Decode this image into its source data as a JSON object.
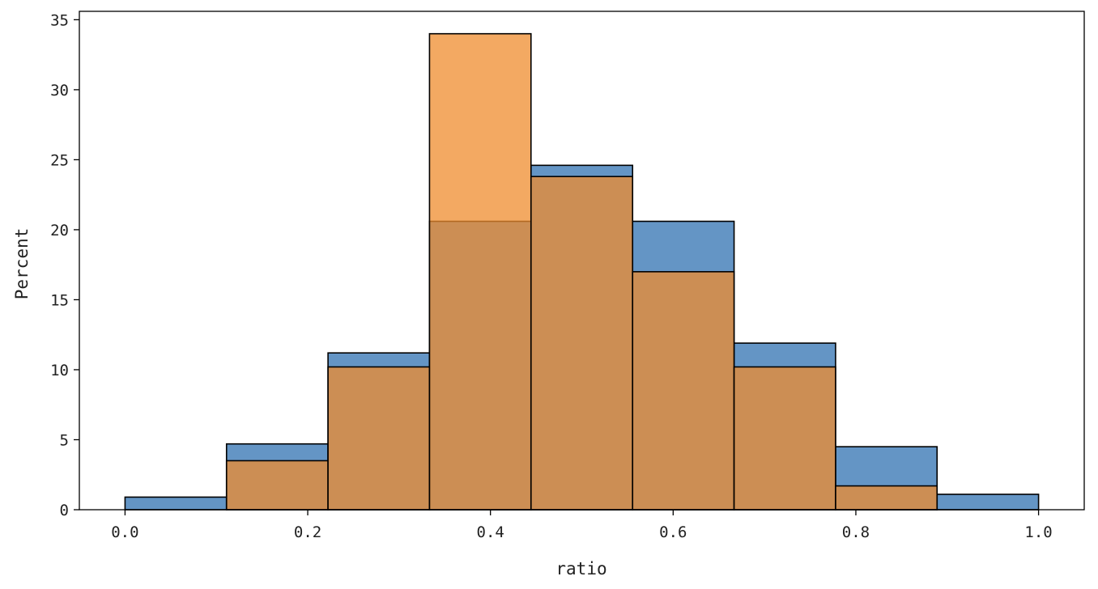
{
  "chart_data": {
    "type": "histogram",
    "xlabel": "ratio",
    "ylabel": "Percent",
    "xlim": [
      -0.05,
      1.05
    ],
    "ylim": [
      0,
      35.6
    ],
    "x_ticks": [
      0.0,
      0.2,
      0.4,
      0.6,
      0.8,
      1.0
    ],
    "x_tick_labels": [
      "0.0",
      "0.2",
      "0.4",
      "0.6",
      "0.8",
      "1.0"
    ],
    "y_ticks": [
      0,
      5,
      10,
      15,
      20,
      25,
      30,
      35
    ],
    "y_tick_labels": [
      "0",
      "5",
      "10",
      "15",
      "20",
      "25",
      "30",
      "35"
    ],
    "bin_edges": [
      0.0,
      0.1111,
      0.2222,
      0.3333,
      0.4444,
      0.5556,
      0.6667,
      0.7778,
      0.8889,
      1.0
    ],
    "grid": false,
    "legend": false,
    "series": [
      {
        "values": [
          0.9,
          4.7,
          11.2,
          20.6,
          24.6,
          20.6,
          11.9,
          4.5,
          1.1
        ],
        "color": "#4f86bd",
        "opacity": 0.88
      },
      {
        "values": [
          0,
          3.5,
          10.2,
          34.0,
          23.8,
          17.0,
          10.2,
          1.7,
          0
        ],
        "color": "#ef8c2d",
        "opacity": 0.75
      }
    ],
    "overlap_color": "#c9884b"
  }
}
